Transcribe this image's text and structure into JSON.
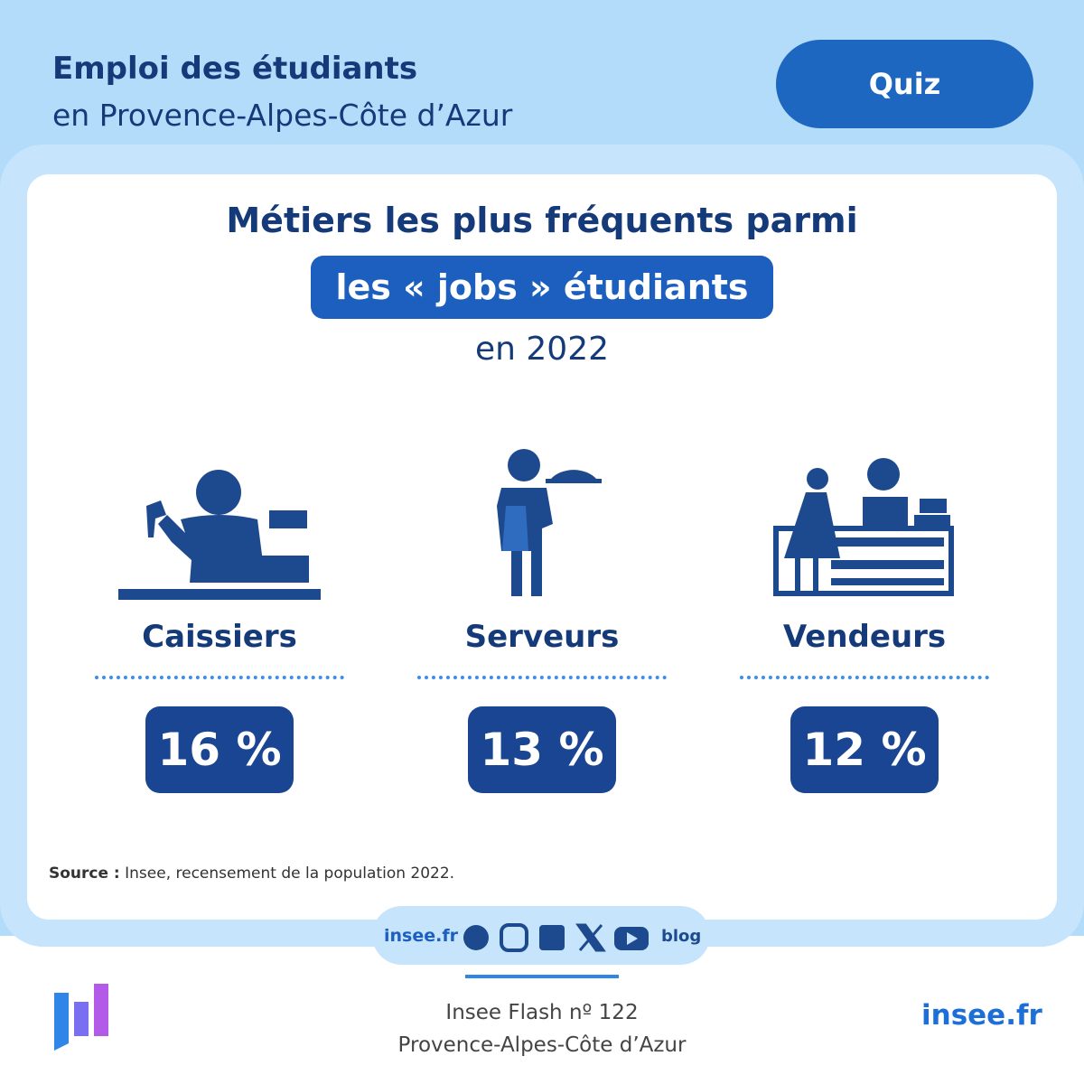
{
  "header": {
    "title": "Emploi des étudiants",
    "subtitle": "en Provence-Alpes-Côte d’Azur",
    "button": "Quiz"
  },
  "card": {
    "title_line1": "Métiers les plus fréquents parmi",
    "title_highlight": "les « jobs » étudiants",
    "year": "en 2022",
    "items": [
      {
        "label": "Caissiers",
        "value": "16 %"
      },
      {
        "label": "Serveurs",
        "value": "13 %"
      },
      {
        "label": "Vendeurs",
        "value": "12 %"
      }
    ],
    "source": {
      "label": "Source :",
      "text": "Insee, recensement de la population 2022."
    }
  },
  "social": {
    "site": "insee.fr",
    "blog": "blog"
  },
  "footer": {
    "publication": "Insee Flash nº 122",
    "region": "Provence-Alpes-Côte d’Azur",
    "site": "insee.fr"
  }
}
